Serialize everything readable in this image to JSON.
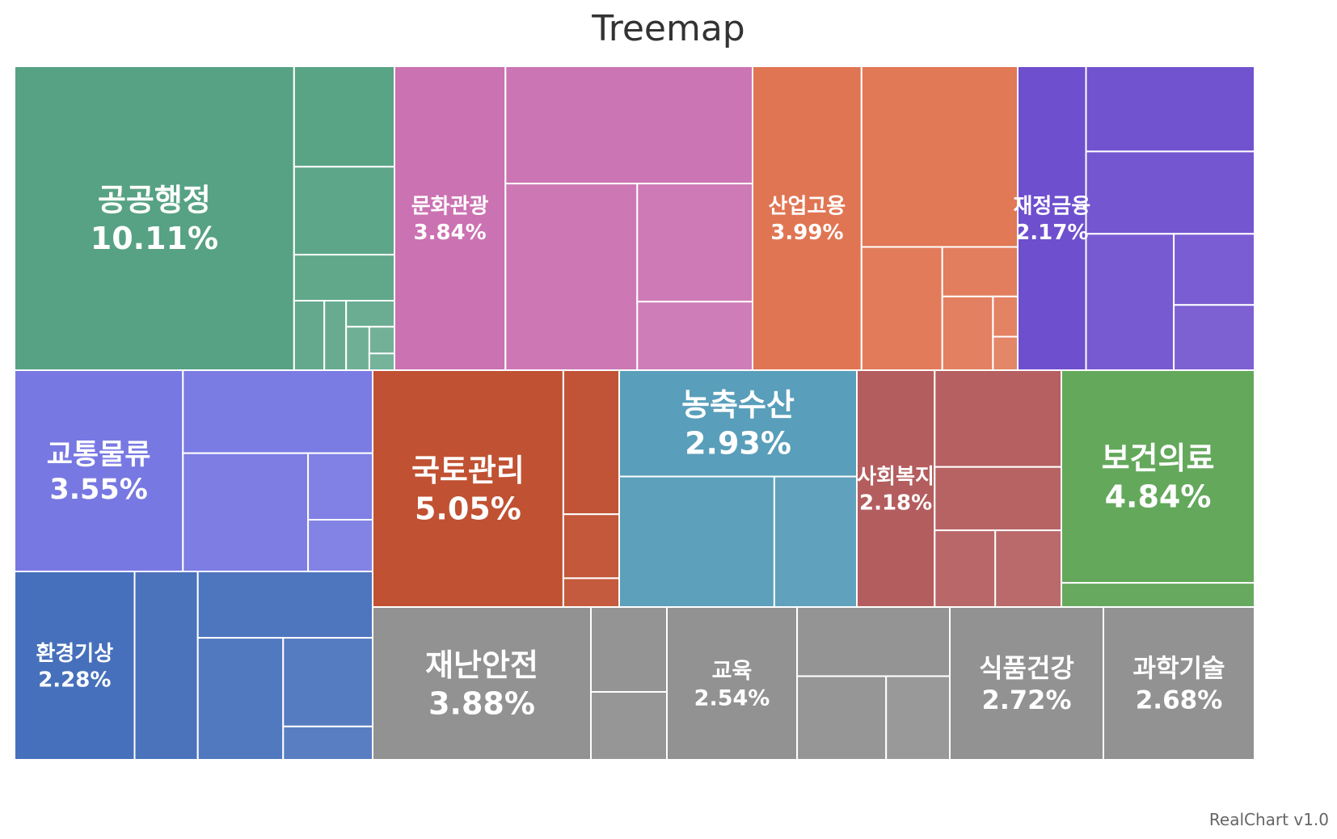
{
  "chart_data": {
    "type": "treemap",
    "title": "Treemap",
    "credit": "RealChart v1.0",
    "groups": [
      {
        "name": "공공행정",
        "value_label": "10.11%",
        "color": "#57a284",
        "children": [
          10.11,
          1.2,
          1.05,
          0.55,
          0.25,
          0.18,
          0.15,
          0.12,
          0.08,
          0.05
        ]
      },
      {
        "name": "문화관광",
        "value_label": "3.84%",
        "color": "#cb72b2",
        "children": [
          3.84,
          3.3,
          2.8,
          1.55,
          0.9
        ]
      },
      {
        "name": "산업고용",
        "value_label": "3.99%",
        "color": "#e07553",
        "children": [
          3.99,
          3.4,
          1.2,
          0.45,
          0.45,
          0.12,
          0.1
        ]
      },
      {
        "name": "재정금융",
        "value_label": "2.17%",
        "color": "#6e4fce",
        "children": [
          2.17,
          1.5,
          1.45,
          1.25,
          0.6,
          0.55
        ]
      },
      {
        "name": "교통물류",
        "value_label": "3.55%",
        "color": "#7878e3",
        "children": [
          3.55,
          1.65,
          1.55,
          0.45,
          0.35
        ]
      },
      {
        "name": "환경기상",
        "value_label": "2.28%",
        "color": "#4670bb",
        "children": [
          2.28,
          1.2,
          1.17,
          1.05,
          0.8,
          0.3
        ]
      },
      {
        "name": "국토관리",
        "value_label": "5.05%",
        "color": "#c05132",
        "children": [
          5.05,
          0.9,
          0.4,
          0.18
        ]
      },
      {
        "name": "농축수산",
        "value_label": "2.93%",
        "color": "#599eba",
        "children": [
          2.93,
          2.35,
          1.25
        ]
      },
      {
        "name": "사회복지",
        "value_label": "2.18%",
        "color": "#b45d5e",
        "children": [
          2.18,
          1.45,
          0.95,
          0.55,
          0.6
        ]
      },
      {
        "name": "보건의료",
        "value_label": "4.84%",
        "color": "#64a85c",
        "children": [
          4.84,
          0.55
        ]
      },
      {
        "name": "재난안전",
        "value_label": "3.88%",
        "color": "#929292",
        "children": [
          3.88,
          0.75,
          0.6
        ]
      },
      {
        "name": "교육",
        "value_label": "2.54%",
        "color": "#929292",
        "children": [
          2.54,
          1.35,
          0.95,
          0.68
        ]
      },
      {
        "name": "식품건강",
        "value_label": "2.72%",
        "color": "#929292",
        "children": [
          2.72
        ]
      },
      {
        "name": "과학기술",
        "value_label": "2.68%",
        "color": "#929292",
        "children": [
          2.68
        ]
      }
    ]
  }
}
